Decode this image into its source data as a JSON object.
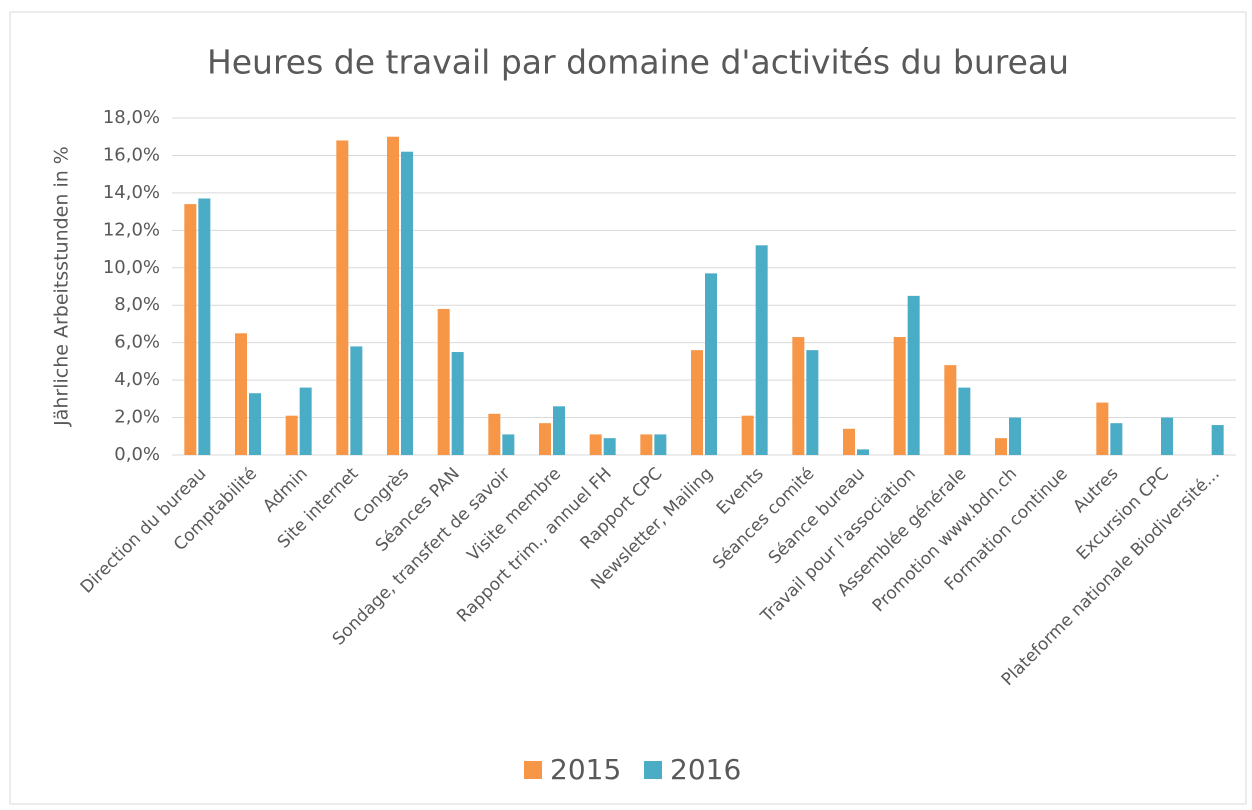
{
  "chart_data": {
    "type": "bar",
    "title": "Heures de travail par domaine d'activités du bureau",
    "y_label": "Jährliche Arbeitsstunden in %",
    "categories": [
      "Direction du bureau",
      "Comptabilité",
      "Admin",
      "Site internet",
      "Congrès",
      "Séances PAN",
      "Sondage, transfert de savoir",
      "Visite membre",
      "Rapport trim., annuel FH",
      "Rapport CPC",
      "Newsletter, Mailing",
      "Events",
      "Séances comité",
      "Séance bureau",
      "Travail pour l'association",
      "Assemblée générale",
      "Promotion www.bdn.ch",
      "Formation continue",
      "Autres",
      "Excursion CPC",
      "Plateforme nationale Biodiversité..."
    ],
    "series": [
      {
        "name": "2015",
        "color": "#f79646",
        "values": [
          13.4,
          6.5,
          2.1,
          16.8,
          17.0,
          7.8,
          2.2,
          1.7,
          1.1,
          1.1,
          5.6,
          2.1,
          6.3,
          1.4,
          6.3,
          4.8,
          0.9,
          null,
          2.8,
          null,
          null
        ]
      },
      {
        "name": "2016",
        "color": "#4bacc6",
        "values": [
          13.7,
          3.3,
          3.6,
          5.8,
          16.2,
          5.5,
          1.1,
          2.6,
          0.9,
          1.1,
          9.7,
          11.2,
          5.6,
          0.3,
          8.5,
          3.6,
          2.0,
          null,
          1.7,
          2.0,
          1.6
        ]
      }
    ],
    "ylim": [
      0,
      18
    ],
    "yticks": [
      {
        "value": 0,
        "label": "0,0%"
      },
      {
        "value": 2,
        "label": "2,0%"
      },
      {
        "value": 4,
        "label": "4,0%"
      },
      {
        "value": 6,
        "label": "6,0%"
      },
      {
        "value": 8,
        "label": "8,0%"
      },
      {
        "value": 10,
        "label": "10,0%"
      },
      {
        "value": 12,
        "label": "12,0%"
      },
      {
        "value": 14,
        "label": "14,0%"
      },
      {
        "value": 16,
        "label": "16,0%"
      },
      {
        "value": 18,
        "label": "18,0%"
      }
    ],
    "grid": true,
    "legend": "bottom"
  }
}
